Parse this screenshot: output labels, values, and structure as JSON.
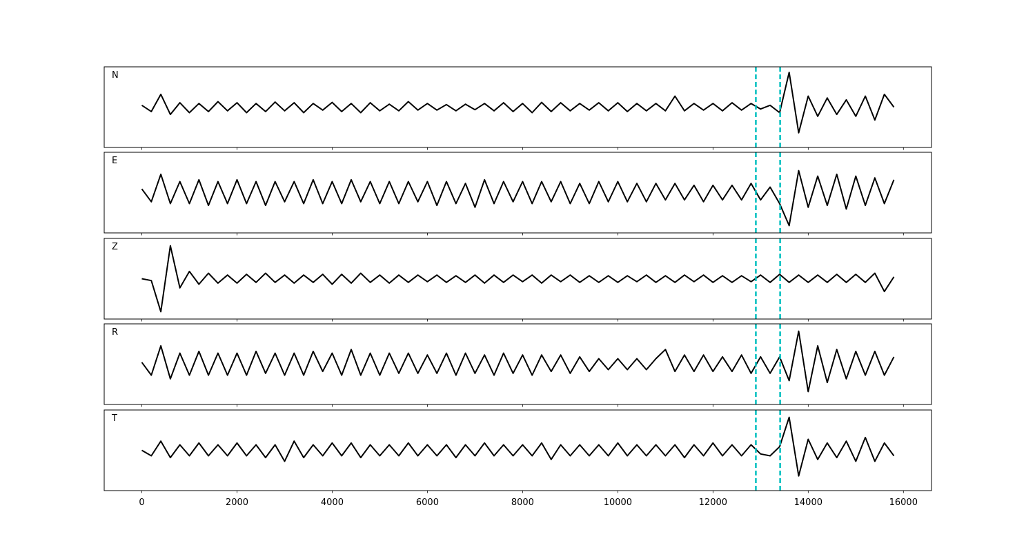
{
  "chart_data": {
    "type": "line",
    "xlim": [
      -790,
      16590
    ],
    "x_start": 0,
    "x_step": 200,
    "ylim": [
      -1.1,
      1.1
    ],
    "grid": false,
    "x_ticks": [
      0,
      2000,
      4000,
      6000,
      8000,
      10000,
      12000,
      14000,
      16000
    ],
    "x_tick_labels": [
      "0",
      "2000",
      "4000",
      "6000",
      "8000",
      "10000",
      "12000",
      "14000",
      "16000"
    ],
    "line_color": "#000000",
    "marker_color": "#00bfbf",
    "vertical_markers": [
      12900,
      13410
    ],
    "panels": [
      {
        "label": "N",
        "values": [
          0.05,
          -0.12,
          0.35,
          -0.2,
          0.12,
          -0.15,
          0.1,
          -0.12,
          0.15,
          -0.1,
          0.12,
          -0.15,
          0.1,
          -0.12,
          0.14,
          -0.1,
          0.12,
          -0.15,
          0.1,
          -0.08,
          0.13,
          -0.12,
          0.1,
          -0.15,
          0.12,
          -0.1,
          0.08,
          -0.1,
          0.15,
          -0.08,
          0.1,
          -0.08,
          0.07,
          -0.1,
          0.08,
          -0.07,
          0.1,
          -0.1,
          0.12,
          -0.12,
          0.1,
          -0.15,
          0.13,
          -0.12,
          0.12,
          -0.1,
          0.1,
          -0.08,
          0.12,
          -0.1,
          0.12,
          -0.12,
          0.1,
          -0.1,
          0.1,
          -0.1,
          0.3,
          -0.1,
          0.1,
          -0.08,
          0.1,
          -0.1,
          0.12,
          -0.08,
          0.1,
          -0.05,
          0.05,
          -0.15,
          0.95,
          -0.7,
          0.3,
          -0.25,
          0.25,
          -0.2,
          0.2,
          -0.25,
          0.3,
          -0.35,
          0.35,
          0.0
        ]
      },
      {
        "label": "E",
        "values": [
          0.1,
          -0.25,
          0.5,
          -0.3,
          0.3,
          -0.3,
          0.35,
          -0.35,
          0.3,
          -0.3,
          0.35,
          -0.3,
          0.3,
          -0.35,
          0.3,
          -0.25,
          0.3,
          -0.3,
          0.35,
          -0.3,
          0.3,
          -0.3,
          0.35,
          -0.25,
          0.3,
          -0.3,
          0.3,
          -0.3,
          0.3,
          -0.25,
          0.3,
          -0.35,
          0.3,
          -0.3,
          0.25,
          -0.4,
          0.35,
          -0.3,
          0.3,
          -0.25,
          0.3,
          -0.3,
          0.3,
          -0.25,
          0.3,
          -0.3,
          0.25,
          -0.3,
          0.3,
          -0.25,
          0.3,
          -0.25,
          0.25,
          -0.25,
          0.25,
          -0.2,
          0.25,
          -0.2,
          0.2,
          -0.25,
          0.2,
          -0.2,
          0.2,
          -0.2,
          0.25,
          -0.2,
          0.15,
          -0.3,
          -0.9,
          0.6,
          -0.4,
          0.45,
          -0.35,
          0.5,
          -0.45,
          0.45,
          -0.35,
          0.4,
          -0.3,
          0.35
        ]
      },
      {
        "label": "Z",
        "values": [
          0.0,
          -0.05,
          -0.9,
          0.9,
          -0.25,
          0.2,
          -0.15,
          0.15,
          -0.12,
          0.1,
          -0.12,
          0.12,
          -0.1,
          0.15,
          -0.1,
          0.1,
          -0.12,
          0.1,
          -0.1,
          0.12,
          -0.15,
          0.12,
          -0.12,
          0.15,
          -0.1,
          0.1,
          -0.12,
          0.1,
          -0.1,
          0.1,
          -0.08,
          0.1,
          -0.1,
          0.08,
          -0.1,
          0.1,
          -0.12,
          0.1,
          -0.1,
          0.1,
          -0.08,
          0.1,
          -0.12,
          0.1,
          -0.08,
          0.1,
          -0.1,
          0.08,
          -0.1,
          0.08,
          -0.1,
          0.08,
          -0.08,
          0.1,
          -0.1,
          0.08,
          -0.1,
          0.1,
          -0.08,
          0.1,
          -0.1,
          0.08,
          -0.1,
          0.08,
          -0.08,
          0.1,
          -0.1,
          0.12,
          -0.1,
          0.1,
          -0.1,
          0.1,
          -0.1,
          0.12,
          -0.1,
          0.12,
          -0.1,
          0.15,
          -0.35,
          0.05
        ]
      },
      {
        "label": "R",
        "values": [
          0.05,
          -0.3,
          0.5,
          -0.4,
          0.3,
          -0.3,
          0.35,
          -0.3,
          0.3,
          -0.3,
          0.3,
          -0.3,
          0.35,
          -0.25,
          0.3,
          -0.3,
          0.3,
          -0.3,
          0.35,
          -0.2,
          0.3,
          -0.3,
          0.4,
          -0.3,
          0.3,
          -0.3,
          0.3,
          -0.25,
          0.3,
          -0.25,
          0.25,
          -0.25,
          0.3,
          -0.3,
          0.3,
          -0.25,
          0.25,
          -0.3,
          0.3,
          -0.25,
          0.25,
          -0.3,
          0.25,
          -0.2,
          0.25,
          -0.25,
          0.2,
          -0.2,
          0.15,
          -0.15,
          0.15,
          -0.15,
          0.15,
          -0.15,
          0.15,
          0.4,
          -0.2,
          0.25,
          -0.2,
          0.25,
          -0.2,
          0.2,
          -0.2,
          0.25,
          -0.25,
          0.2,
          -0.25,
          0.2,
          -0.45,
          0.9,
          -0.75,
          0.5,
          -0.5,
          0.4,
          -0.4,
          0.35,
          -0.3,
          0.35,
          -0.3,
          0.2
        ]
      },
      {
        "label": "T",
        "values": [
          0.0,
          -0.15,
          0.25,
          -0.2,
          0.15,
          -0.15,
          0.2,
          -0.15,
          0.15,
          -0.15,
          0.2,
          -0.15,
          0.15,
          -0.2,
          0.15,
          -0.3,
          0.25,
          -0.2,
          0.15,
          -0.15,
          0.2,
          -0.15,
          0.2,
          -0.2,
          0.15,
          -0.15,
          0.15,
          -0.15,
          0.2,
          -0.15,
          0.15,
          -0.15,
          0.15,
          -0.2,
          0.15,
          -0.15,
          0.2,
          -0.15,
          0.15,
          -0.15,
          0.15,
          -0.15,
          0.2,
          -0.25,
          0.15,
          -0.15,
          0.15,
          -0.15,
          0.15,
          -0.15,
          0.2,
          -0.15,
          0.15,
          -0.15,
          0.15,
          -0.15,
          0.15,
          -0.2,
          0.15,
          -0.15,
          0.2,
          -0.15,
          0.15,
          -0.15,
          0.15,
          -0.1,
          -0.15,
          0.1,
          0.9,
          -0.7,
          0.3,
          -0.25,
          0.2,
          -0.2,
          0.25,
          -0.3,
          0.35,
          -0.3,
          0.2,
          -0.15
        ]
      }
    ]
  }
}
